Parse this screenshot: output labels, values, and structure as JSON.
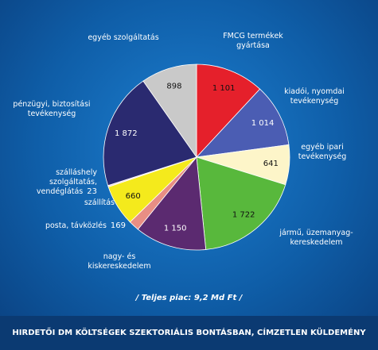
{
  "chart_data": {
    "type": "pie",
    "title": "HIRDETŐI DM KÖLTSÉGEK SZEKTORIÁLIS BONTÁSBAN, CÍMZETLEN KÜLDEMÉNY",
    "subtitle": "/ Teljes piac: 9,2 Md Ft /",
    "categories": [
      "FMCG termékek gyártása",
      "kiadói, nyomdai tevékenység",
      "egyéb ipari tevékenység",
      "jármű, üzemanyag-kereskedelem",
      "nagy- és kiskereskedelem",
      "posta, távközlés",
      "szállítás",
      "szálláshely szolgáltatás, vendéglátás",
      "pénzügyi, biztosítási tevékenység",
      "egyéb szolgáltatás"
    ],
    "values": [
      1101,
      1014,
      641,
      1722,
      1150,
      169,
      660,
      23,
      1872,
      898
    ],
    "value_labels": [
      "1 101",
      "1 014",
      "641",
      "1 722",
      "1 150",
      "169",
      "660",
      "23",
      "1 872",
      "898"
    ],
    "colors": [
      "#e5202b",
      "#4b5db3",
      "#fdf5c9",
      "#58b83c",
      "#5b2a70",
      "#e88e84",
      "#f4ea1c",
      "#f2d6dc",
      "#2a2a70",
      "#c9c9c9"
    ]
  }
}
